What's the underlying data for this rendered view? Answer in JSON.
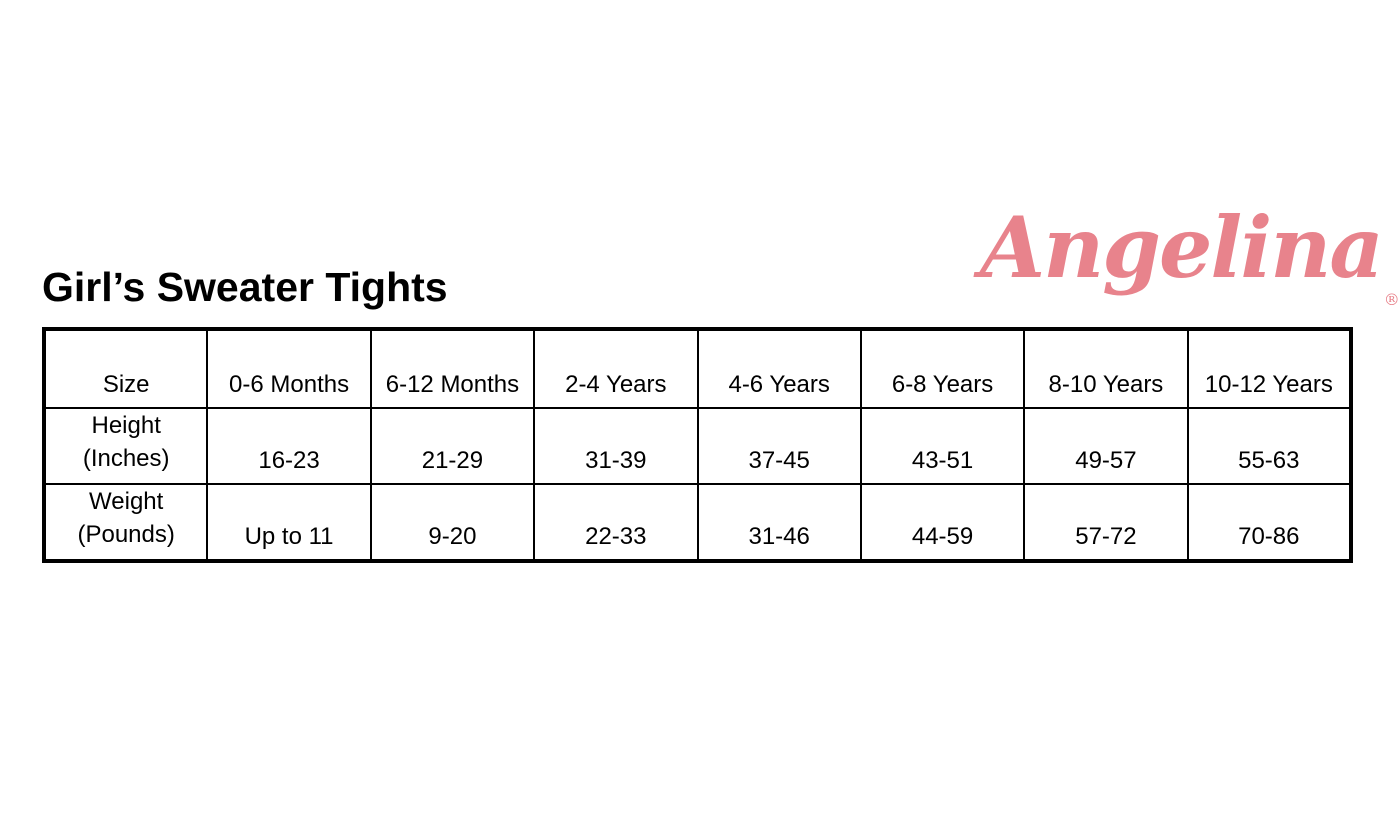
{
  "page": {
    "title": "Girl’s Sweater Tights"
  },
  "brand": {
    "name": "Angelina",
    "registered_mark": "®",
    "color": "#E8838C"
  },
  "size_chart": {
    "columns": [
      "Size",
      "0-6 Months",
      "6-12 Months",
      "2-4 Years",
      "4-6 Years",
      "6-8 Years",
      "8-10 Years",
      "10-12 Years"
    ],
    "rows": [
      {
        "label_line1": "Height",
        "label_line2": "(Inches)",
        "values": [
          "16-23",
          "21-29",
          "31-39",
          "37-45",
          "43-51",
          "49-57",
          "55-63"
        ]
      },
      {
        "label_line1": "Weight",
        "label_line2": "(Pounds)",
        "values": [
          "Up to 11",
          "9-20",
          "22-33",
          "31-46",
          "44-59",
          "57-72",
          "70-86"
        ]
      }
    ]
  }
}
